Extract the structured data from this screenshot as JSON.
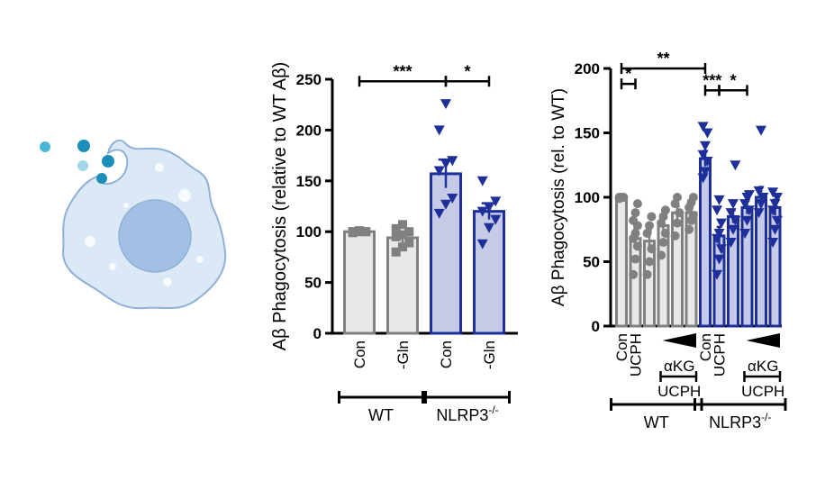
{
  "colors": {
    "wt_fill": "#e8e8e8",
    "wt_edge": "#808080",
    "ko_fill": "#c5cbe6",
    "ko_edge": "#1e2f9a",
    "cell_fill": "#dbe9f6",
    "cell_edge": "#8fb1d8",
    "nucleus": "#a3bfe3",
    "particle": "#2a9bc4"
  },
  "cell_icon": "macrophage-phagocytosing-amyloid-beta-icon",
  "chart_data": [
    {
      "type": "bar",
      "ylabel": "Aβ Phagocytosis (relative to WT Aβ)",
      "ylim": [
        0,
        250
      ],
      "yticks": [
        "0",
        "50",
        "100",
        "150",
        "200",
        "250"
      ],
      "categories": [
        "Con",
        "-Gln",
        "Con",
        "-Gln"
      ],
      "groups": [
        {
          "label": "WT",
          "span": [
            0,
            1
          ]
        },
        {
          "label": "NLRP3",
          "sup": "-/-",
          "span": [
            2,
            3
          ]
        }
      ],
      "values": [
        100,
        94,
        157,
        120
      ],
      "errors": [
        2,
        6,
        14,
        8
      ],
      "points": [
        [
          100,
          100,
          100,
          99,
          101,
          100,
          100
        ],
        [
          80,
          85,
          89,
          95,
          97,
          100,
          103,
          107
        ],
        [
          118,
          127,
          133,
          160,
          167,
          170,
          200,
          226
        ],
        [
          88,
          104,
          112,
          120,
          124,
          130,
          150
        ]
      ],
      "group_of_bar": [
        "wt",
        "wt",
        "ko",
        "ko"
      ],
      "marker": [
        "square",
        "square",
        "triangle-down",
        "triangle-down"
      ],
      "significance": [
        {
          "label": "***",
          "from": 0,
          "to": 2,
          "y": 248
        },
        {
          "label": "*",
          "from": 2,
          "to": 3,
          "y": 248
        }
      ]
    },
    {
      "type": "bar",
      "ylabel": "Aβ Phagocytosis (rel. to WT)",
      "ylim": [
        0,
        200
      ],
      "yticks": [
        "0",
        "50",
        "100",
        "150",
        "200"
      ],
      "categories": [
        "Con",
        "UCPH",
        "",
        "",
        "",
        "",
        "Con",
        "UCPH",
        "",
        "",
        "",
        ""
      ],
      "treatment_labels": [
        {
          "label": "αKG",
          "from": 2,
          "to": 5
        },
        {
          "label": "UCPH",
          "from": 2,
          "to": 5
        },
        {
          "label": "αKG",
          "from": 8,
          "to": 11
        },
        {
          "label": "UCPH",
          "from": 8,
          "to": 11
        }
      ],
      "groups": [
        {
          "label": "WT",
          "span": [
            0,
            5
          ]
        },
        {
          "label": "NLRP3",
          "sup": "-/-",
          "span": [
            6,
            11
          ]
        }
      ],
      "values": [
        100,
        68,
        66,
        78,
        88,
        88,
        130,
        70,
        85,
        92,
        100,
        92
      ],
      "errors": [
        1,
        7,
        8,
        7,
        5,
        5,
        6,
        7,
        5,
        5,
        8,
        6
      ],
      "points": [
        [
          100,
          100,
          100,
          99
        ],
        [
          40,
          52,
          62,
          68,
          72,
          78,
          82,
          88,
          95
        ],
        [
          40,
          50,
          60,
          72,
          78,
          85
        ],
        [
          55,
          65,
          72,
          80,
          85,
          90
        ],
        [
          70,
          80,
          88,
          95,
          100
        ],
        [
          75,
          82,
          86,
          92,
          96,
          100
        ],
        [
          115,
          120,
          128,
          133,
          140,
          150,
          155
        ],
        [
          40,
          52,
          60,
          68,
          72,
          80,
          90,
          98
        ],
        [
          65,
          75,
          82,
          88,
          95,
          125
        ],
        [
          72,
          82,
          90,
          95,
          100,
          102
        ],
        [
          88,
          95,
          100,
          105,
          152
        ],
        [
          65,
          75,
          82,
          90,
          95,
          100,
          104
        ]
      ],
      "group_of_bar": [
        "wt",
        "wt",
        "wt",
        "wt",
        "wt",
        "wt",
        "ko",
        "ko",
        "ko",
        "ko",
        "ko",
        "ko"
      ],
      "marker": [
        "circle",
        "circle",
        "circle",
        "circle",
        "circle",
        "circle",
        "triangle-down",
        "triangle-down",
        "triangle-down",
        "triangle-down",
        "triangle-down",
        "triangle-down"
      ],
      "significance": [
        {
          "label": "**",
          "from": 0,
          "to": 6,
          "y": 200
        },
        {
          "label": "*",
          "from": 0,
          "to": 1,
          "y": 188
        },
        {
          "label": "***",
          "from": 6,
          "to": 7,
          "y": 183
        },
        {
          "label": "*",
          "from": 7,
          "to": 9,
          "y": 183
        }
      ]
    }
  ]
}
